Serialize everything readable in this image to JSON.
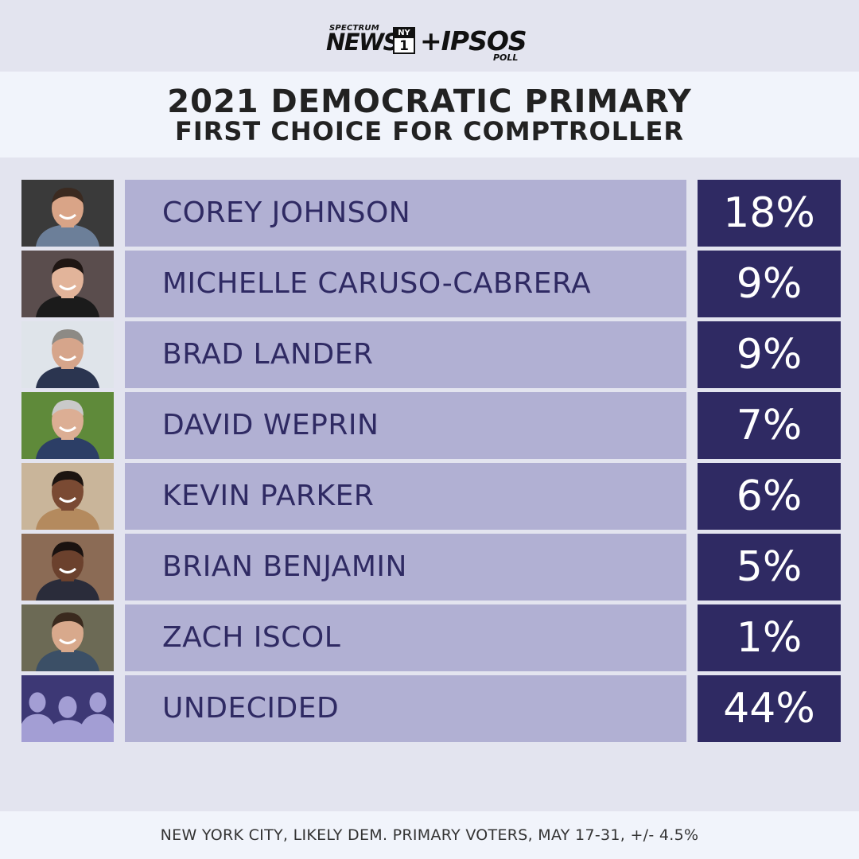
{
  "logo": {
    "spectrum": "SPECTRUM",
    "news": "NEWS",
    "ny_top": "NY",
    "ny_bottom": "1",
    "ipsos": "+IPSOS",
    "poll": "POLL"
  },
  "title": "2021 DEMOCRATIC PRIMARY",
  "subtitle": "FIRST CHOICE FOR COMPTROLLER",
  "footer_note": "NEW YORK CITY, LIKELY DEM. PRIMARY VOTERS, MAY 17-31, +/- 4.5%",
  "colors": {
    "bar": "#b1b0d3",
    "value_box": "#2f2a63",
    "name_text": "#2f2a63",
    "undecided_bg": "#3d3875",
    "silhouette": "#a39ed4"
  },
  "chart_data": {
    "type": "bar",
    "title": "2021 DEMOCRATIC PRIMARY",
    "subtitle": "FIRST CHOICE FOR COMPTROLLER",
    "categories": [
      "COREY JOHNSON",
      "MICHELLE CARUSO-CABRERA",
      "BRAD LANDER",
      "DAVID WEPRIN",
      "KEVIN PARKER",
      "BRIAN BENJAMIN",
      "ZACH ISCOL",
      "UNDECIDED"
    ],
    "values": [
      18,
      9,
      9,
      7,
      6,
      5,
      1,
      44
    ],
    "labels": [
      "18%",
      "9%",
      "9%",
      "7%",
      "6%",
      "5%",
      "1%",
      "44%"
    ],
    "unit": "%"
  },
  "rows": [
    {
      "name": "COREY JOHNSON",
      "pct": "18%",
      "photo": "candidate-photo",
      "bg": "#3a3a3a",
      "skin": "#d9a487",
      "hair": "#3b2a20",
      "suit": "#6c7f99"
    },
    {
      "name": "MICHELLE CARUSO-CABRERA",
      "pct": "9%",
      "photo": "candidate-photo",
      "bg": "#5a4d4d",
      "skin": "#e2b49a",
      "hair": "#1f1613",
      "suit": "#1b1b1b"
    },
    {
      "name": "BRAD LANDER",
      "pct": "9%",
      "photo": "candidate-photo",
      "bg": "#dfe4ea",
      "skin": "#d6a58b",
      "hair": "#8d8a85",
      "suit": "#2b3550"
    },
    {
      "name": "DAVID WEPRIN",
      "pct": "7%",
      "photo": "candidate-photo",
      "bg": "#5f8a3a",
      "skin": "#dcae94",
      "hair": "#c9c9c9",
      "suit": "#2c3e66"
    },
    {
      "name": "KEVIN PARKER",
      "pct": "6%",
      "photo": "candidate-photo",
      "bg": "#c9b59a",
      "skin": "#7a4a33",
      "hair": "#1c1410",
      "suit": "#b48a5e"
    },
    {
      "name": "BRIAN BENJAMIN",
      "pct": "5%",
      "photo": "candidate-photo",
      "bg": "#8b6b55",
      "skin": "#6b412d",
      "hair": "#1a1210",
      "suit": "#2a2c3a"
    },
    {
      "name": "ZACH ISCOL",
      "pct": "1%",
      "photo": "candidate-photo",
      "bg": "#6c6a55",
      "skin": "#d8a98c",
      "hair": "#3a2a1e",
      "suit": "#3b4f66"
    },
    {
      "name": "UNDECIDED",
      "pct": "44%",
      "photo": "undecided-silhouettes-icon",
      "bg": "#3d3875",
      "skin": "",
      "hair": "",
      "suit": ""
    }
  ]
}
